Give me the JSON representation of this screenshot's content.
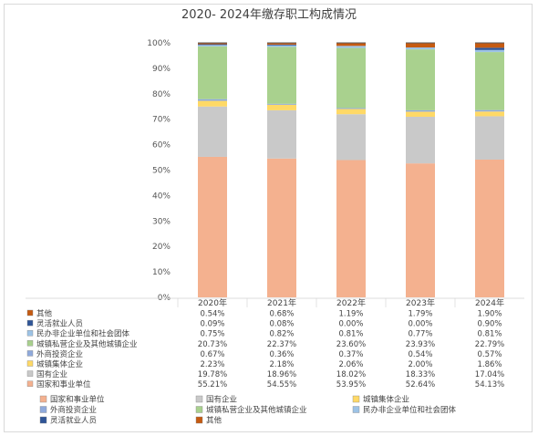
{
  "chart_data": {
    "type": "bar",
    "stacked": true,
    "title": "2020- 2024年缴存职工构成情况",
    "categories": [
      "2020年",
      "2021年",
      "2022年",
      "2023年",
      "2024年"
    ],
    "yticks": [
      "0%",
      "10%",
      "20%",
      "30%",
      "40%",
      "50%",
      "60%",
      "70%",
      "80%",
      "90%",
      "100%"
    ],
    "ylim": [
      0,
      100
    ],
    "grid": false,
    "legend_position": "bottom",
    "series": [
      {
        "name": "国家和事业单位",
        "color": "#F4B18F",
        "values": [
          55.21,
          54.55,
          53.95,
          52.64,
          54.13
        ],
        "labels": [
          "55.21%",
          "54.55%",
          "53.95%",
          "52.64%",
          "54.13%"
        ]
      },
      {
        "name": "国有企业",
        "color": "#C9C9C9",
        "values": [
          19.78,
          18.96,
          18.02,
          18.33,
          17.04
        ],
        "labels": [
          "19.78%",
          "18.96%",
          "18.02%",
          "18.33%",
          "17.04%"
        ]
      },
      {
        "name": "城镇集体企业",
        "color": "#FFD966",
        "values": [
          2.23,
          2.18,
          2.06,
          2.0,
          1.86
        ],
        "labels": [
          "2.23%",
          "2.18%",
          "2.06%",
          "2.00%",
          "1.86%"
        ]
      },
      {
        "name": "外商投资企业",
        "color": "#8FAADC",
        "values": [
          0.67,
          0.36,
          0.37,
          0.54,
          0.57
        ],
        "labels": [
          "0.67%",
          "0.36%",
          "0.37%",
          "0.54%",
          "0.57%"
        ]
      },
      {
        "name": "城镇私营企业及其他城镇企业",
        "color": "#A9D18E",
        "values": [
          20.73,
          22.37,
          23.6,
          23.93,
          22.79
        ],
        "labels": [
          "20.73%",
          "22.37%",
          "23.60%",
          "23.93%",
          "22.79%"
        ]
      },
      {
        "name": "民办非企业单位和社会团体",
        "color": "#9DC3E6",
        "values": [
          0.75,
          0.82,
          0.81,
          0.77,
          0.81
        ],
        "labels": [
          "0.75%",
          "0.82%",
          "0.81%",
          "0.77%",
          "0.81%"
        ]
      },
      {
        "name": "灵活就业人员",
        "color": "#2F5597",
        "values": [
          0.09,
          0.08,
          0.0,
          0.0,
          0.9
        ],
        "labels": [
          "0.09%",
          "0.08%",
          "0.00%",
          "0.00%",
          "0.90%"
        ]
      },
      {
        "name": "其他",
        "color": "#C55A11",
        "values": [
          0.54,
          0.68,
          1.19,
          1.79,
          1.9
        ],
        "labels": [
          "0.54%",
          "0.68%",
          "1.19%",
          "1.79%",
          "1.90%"
        ]
      }
    ],
    "table_rows_order": [
      "其他",
      "灵活就业人员",
      "民办非企业单位和社会团体",
      "城镇私营企业及其他城镇企业",
      "外商投资企业",
      "城镇集体企业",
      "国有企业",
      "国家和事业单位"
    ],
    "legend_order": [
      "国家和事业单位",
      "国有企业",
      "城镇集体企业",
      "外商投资企业",
      "城镇私营企业及其他城镇企业",
      "民办非企业单位和社会团体",
      "灵活就业人员",
      "其他"
    ]
  }
}
